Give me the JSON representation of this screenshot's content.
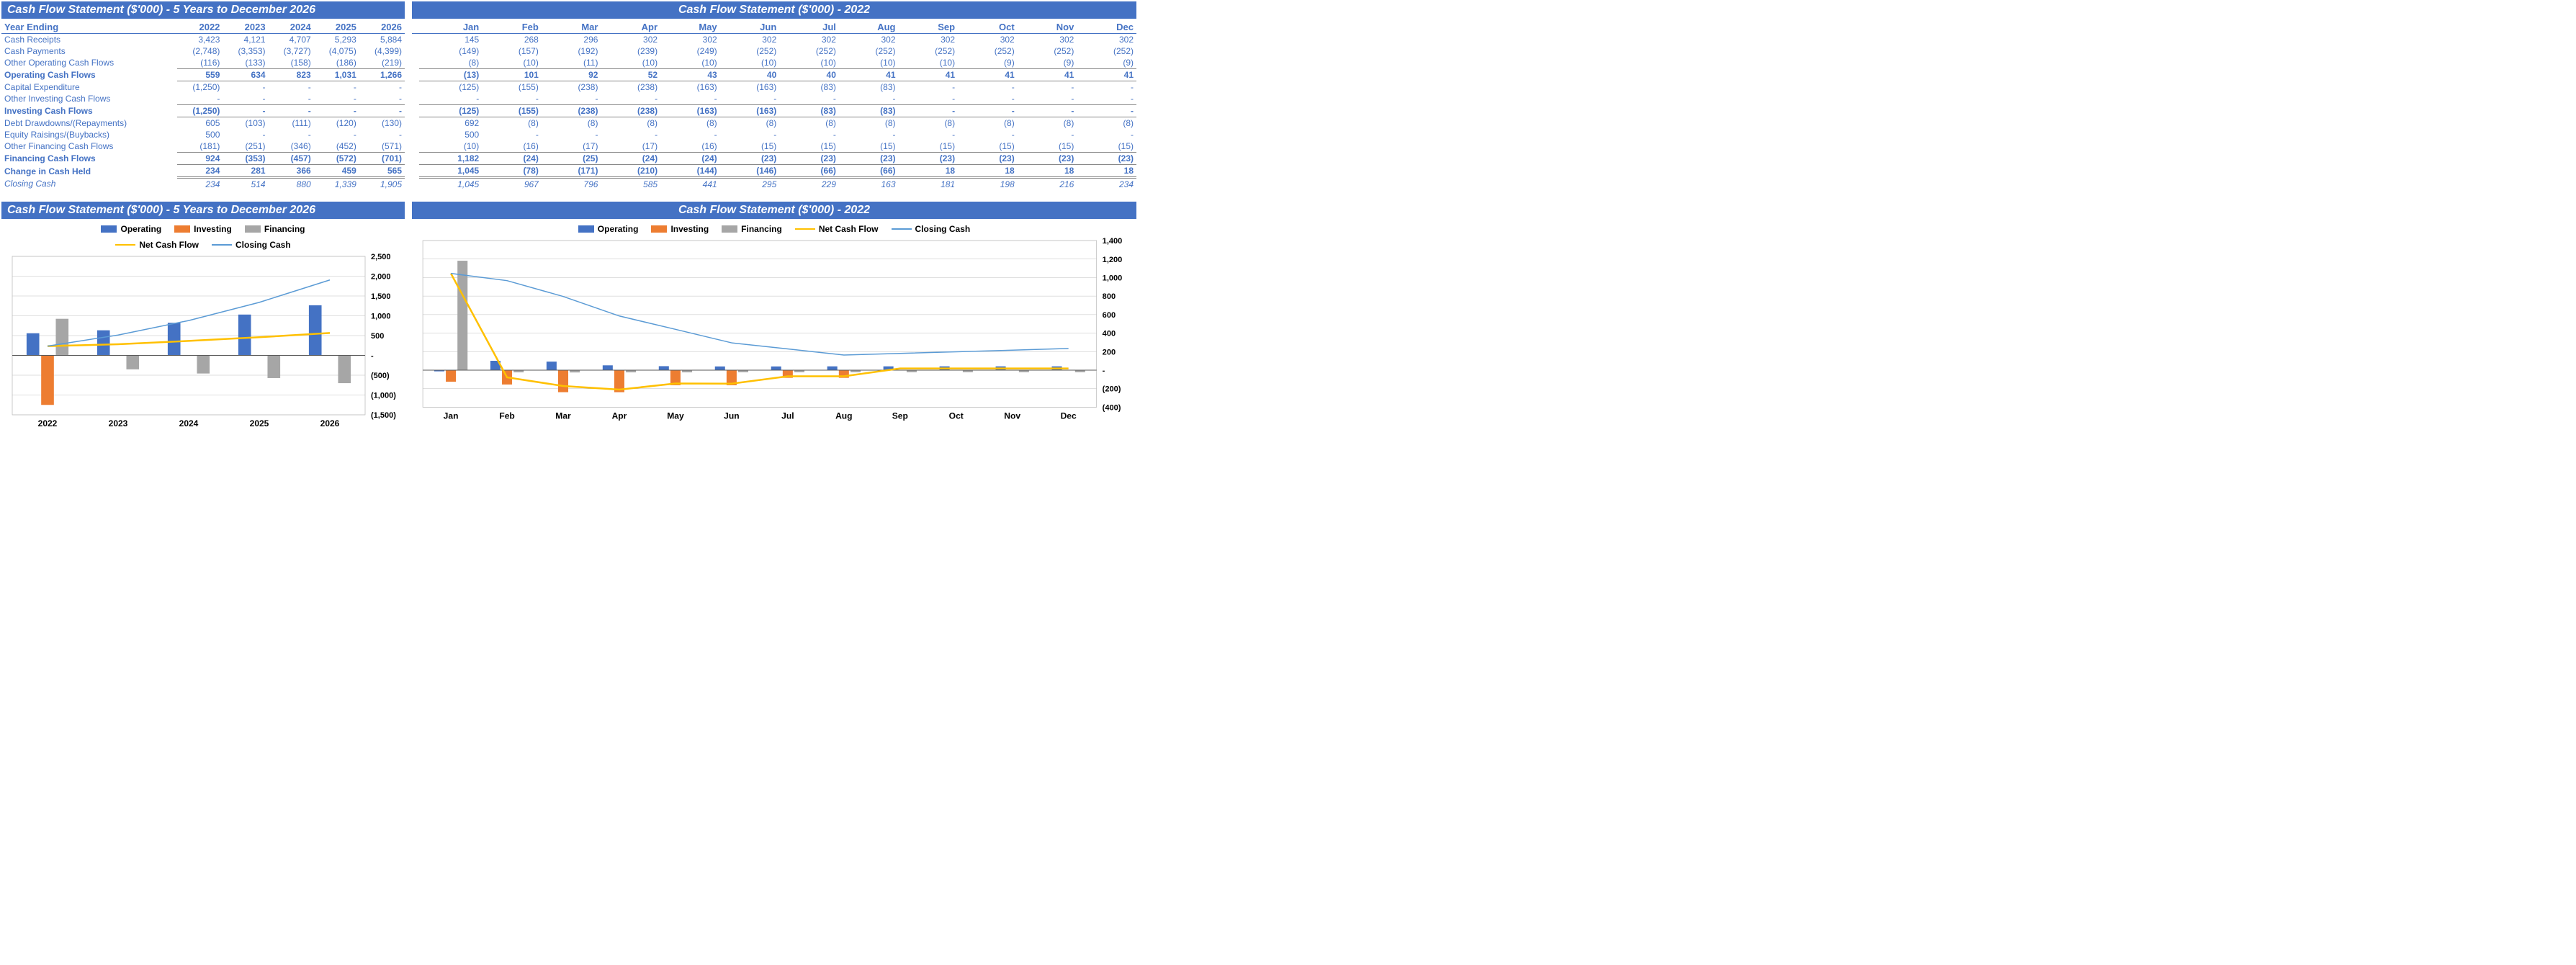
{
  "colors": {
    "header_bg": "#4472c4",
    "text_blue": "#4472c4",
    "bar_operating": "#4472c4",
    "bar_investing": "#ed7d31",
    "bar_financing": "#a6a6a6",
    "line_netcash": "#ffc000",
    "line_closing": "#5b9bd5",
    "grid": "#bfbfbf",
    "axis": "#595959",
    "black": "#000000"
  },
  "left_table": {
    "title": "Cash Flow Statement ($'000) - 5 Years to December 2026",
    "header_label": "Year Ending",
    "years": [
      "2022",
      "2023",
      "2024",
      "2025",
      "2026"
    ],
    "rows": [
      {
        "label": "Cash Receipts",
        "vals": [
          "3,423",
          "4,121",
          "4,707",
          "5,293",
          "5,884"
        ]
      },
      {
        "label": "Cash Payments",
        "vals": [
          "(2,748)",
          "(3,353)",
          "(3,727)",
          "(4,075)",
          "(4,399)"
        ]
      },
      {
        "label": "Other Operating Cash Flows",
        "vals": [
          "(116)",
          "(133)",
          "(158)",
          "(186)",
          "(219)"
        ],
        "botline": true
      },
      {
        "label": "Operating Cash Flows",
        "vals": [
          "559",
          "634",
          "823",
          "1,031",
          "1,266"
        ],
        "bold": true,
        "botline": true
      },
      {
        "label": "Capital Expenditure",
        "vals": [
          "(1,250)",
          "-",
          "-",
          "-",
          "-"
        ]
      },
      {
        "label": "Other Investing Cash Flows",
        "vals": [
          "-",
          "-",
          "-",
          "-",
          "-"
        ],
        "botline": true
      },
      {
        "label": "Investing Cash Flows",
        "vals": [
          "(1,250)",
          "-",
          "-",
          "-",
          "-"
        ],
        "bold": true,
        "botline": true
      },
      {
        "label": "Debt Drawdowns/(Repayments)",
        "vals": [
          "605",
          "(103)",
          "(111)",
          "(120)",
          "(130)"
        ]
      },
      {
        "label": "Equity Raisings/(Buybacks)",
        "vals": [
          "500",
          "-",
          "-",
          "-",
          "-"
        ]
      },
      {
        "label": "Other Financing Cash Flows",
        "vals": [
          "(181)",
          "(251)",
          "(346)",
          "(452)",
          "(571)"
        ],
        "botline": true
      },
      {
        "label": "Financing Cash Flows",
        "vals": [
          "924",
          "(353)",
          "(457)",
          "(572)",
          "(701)"
        ],
        "bold": true,
        "botline": true
      },
      {
        "label": "Change in Cash Held",
        "vals": [
          "234",
          "281",
          "366",
          "459",
          "565"
        ],
        "bold": true,
        "dblbotline": true
      },
      {
        "label": "Closing Cash",
        "vals": [
          "234",
          "514",
          "880",
          "1,339",
          "1,905"
        ],
        "italic": true
      }
    ]
  },
  "right_table": {
    "title": "Cash Flow Statement ($'000) - 2022",
    "months": [
      "Jan",
      "Feb",
      "Mar",
      "Apr",
      "May",
      "Jun",
      "Jul",
      "Aug",
      "Sep",
      "Oct",
      "Nov",
      "Dec"
    ],
    "rows": [
      {
        "vals": [
          "145",
          "268",
          "296",
          "302",
          "302",
          "302",
          "302",
          "302",
          "302",
          "302",
          "302",
          "302"
        ]
      },
      {
        "vals": [
          "(149)",
          "(157)",
          "(192)",
          "(239)",
          "(249)",
          "(252)",
          "(252)",
          "(252)",
          "(252)",
          "(252)",
          "(252)",
          "(252)"
        ]
      },
      {
        "vals": [
          "(8)",
          "(10)",
          "(11)",
          "(10)",
          "(10)",
          "(10)",
          "(10)",
          "(10)",
          "(10)",
          "(9)",
          "(9)",
          "(9)"
        ],
        "botline": true
      },
      {
        "vals": [
          "(13)",
          "101",
          "92",
          "52",
          "43",
          "40",
          "40",
          "41",
          "41",
          "41",
          "41",
          "41"
        ],
        "bold": true,
        "botline": true
      },
      {
        "vals": [
          "(125)",
          "(155)",
          "(238)",
          "(238)",
          "(163)",
          "(163)",
          "(83)",
          "(83)",
          "-",
          "-",
          "-",
          "-"
        ]
      },
      {
        "vals": [
          "-",
          "-",
          "-",
          "-",
          "-",
          "-",
          "-",
          "-",
          "-",
          "-",
          "-",
          "-"
        ],
        "botline": true
      },
      {
        "vals": [
          "(125)",
          "(155)",
          "(238)",
          "(238)",
          "(163)",
          "(163)",
          "(83)",
          "(83)",
          "-",
          "-",
          "-",
          "-"
        ],
        "bold": true,
        "botline": true
      },
      {
        "vals": [
          "692",
          "(8)",
          "(8)",
          "(8)",
          "(8)",
          "(8)",
          "(8)",
          "(8)",
          "(8)",
          "(8)",
          "(8)",
          "(8)"
        ]
      },
      {
        "vals": [
          "500",
          "-",
          "-",
          "-",
          "-",
          "-",
          "-",
          "-",
          "-",
          "-",
          "-",
          "-"
        ]
      },
      {
        "vals": [
          "(10)",
          "(16)",
          "(17)",
          "(17)",
          "(16)",
          "(15)",
          "(15)",
          "(15)",
          "(15)",
          "(15)",
          "(15)",
          "(15)"
        ],
        "botline": true
      },
      {
        "vals": [
          "1,182",
          "(24)",
          "(25)",
          "(24)",
          "(24)",
          "(23)",
          "(23)",
          "(23)",
          "(23)",
          "(23)",
          "(23)",
          "(23)"
        ],
        "bold": true,
        "botline": true
      },
      {
        "vals": [
          "1,045",
          "(78)",
          "(171)",
          "(210)",
          "(144)",
          "(146)",
          "(66)",
          "(66)",
          "18",
          "18",
          "18",
          "18"
        ],
        "bold": true,
        "dblbotline": true
      },
      {
        "vals": [
          "1,045",
          "967",
          "796",
          "585",
          "441",
          "295",
          "229",
          "163",
          "181",
          "198",
          "216",
          "234"
        ],
        "italic": true
      }
    ]
  },
  "left_chart": {
    "title": "Cash Flow Statement ($'000) - 5 Years to December 2026",
    "legend": {
      "operating": "Operating",
      "investing": "Investing",
      "financing": "Financing",
      "net": "Net Cash Flow",
      "closing": "Closing Cash"
    },
    "categories": [
      "2022",
      "2023",
      "2024",
      "2025",
      "2026"
    ],
    "operating": [
      559,
      634,
      823,
      1031,
      1266
    ],
    "investing": [
      -1250,
      0,
      0,
      0,
      0
    ],
    "financing": [
      924,
      -353,
      -457,
      -572,
      -701
    ],
    "netcash": [
      234,
      281,
      366,
      459,
      565
    ],
    "closing": [
      234,
      514,
      880,
      1339,
      1905
    ],
    "ymin": -1500,
    "ymax": 2500,
    "ystep": 500,
    "ylabels": [
      "(1,500)",
      "(1,000)",
      "(500)",
      "-",
      "500",
      "1,000",
      "1,500",
      "2,000",
      "2,500"
    ]
  },
  "right_chart": {
    "title": "Cash Flow Statement ($'000) - 2022",
    "legend": {
      "operating": "Operating",
      "investing": "Investing",
      "financing": "Financing",
      "net": "Net Cash Flow",
      "closing": "Closing Cash"
    },
    "categories": [
      "Jan",
      "Feb",
      "Mar",
      "Apr",
      "May",
      "Jun",
      "Jul",
      "Aug",
      "Sep",
      "Oct",
      "Nov",
      "Dec"
    ],
    "operating": [
      -13,
      101,
      92,
      52,
      43,
      40,
      40,
      41,
      41,
      41,
      41,
      41
    ],
    "investing": [
      -125,
      -155,
      -238,
      -238,
      -163,
      -163,
      -83,
      -83,
      0,
      0,
      0,
      0
    ],
    "financing": [
      1182,
      -24,
      -25,
      -24,
      -24,
      -23,
      -23,
      -23,
      -23,
      -23,
      -23,
      -23
    ],
    "netcash": [
      1045,
      -78,
      -171,
      -210,
      -144,
      -146,
      -66,
      -66,
      18,
      18,
      18,
      18
    ],
    "closing": [
      1045,
      967,
      796,
      585,
      441,
      295,
      229,
      163,
      181,
      198,
      216,
      234
    ],
    "ymin": -400,
    "ymax": 1400,
    "ystep": 200,
    "ylabels": [
      "(400)",
      "(200)",
      "-",
      "200",
      "400",
      "600",
      "800",
      "1,000",
      "1,200",
      "1,400"
    ]
  }
}
